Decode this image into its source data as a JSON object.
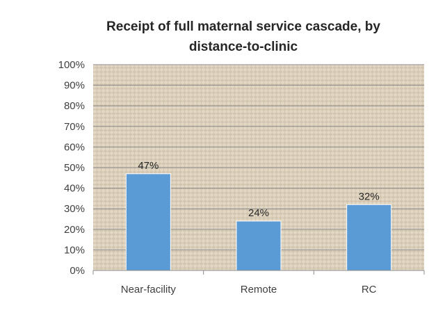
{
  "chart_data": {
    "type": "bar",
    "title_lines": [
      "Receipt of full maternal service cascade, by",
      "distance-to-clinic"
    ],
    "categories": [
      "Near-facility",
      "Remote",
      "RC"
    ],
    "values": [
      47,
      24,
      32
    ],
    "data_labels": [
      "47%",
      "24%",
      "32%"
    ],
    "ylim": [
      0,
      100
    ],
    "yticks": [
      "0%",
      "10%",
      "20%",
      "30%",
      "40%",
      "50%",
      "60%",
      "70%",
      "80%",
      "90%",
      "100%"
    ],
    "xlabel": "",
    "ylabel": "",
    "grid": true,
    "legend": "none",
    "colors": {
      "bar": "#5b9bd5",
      "plot_bg": "#ddd1bd",
      "grid": "#8c8c8c"
    }
  }
}
